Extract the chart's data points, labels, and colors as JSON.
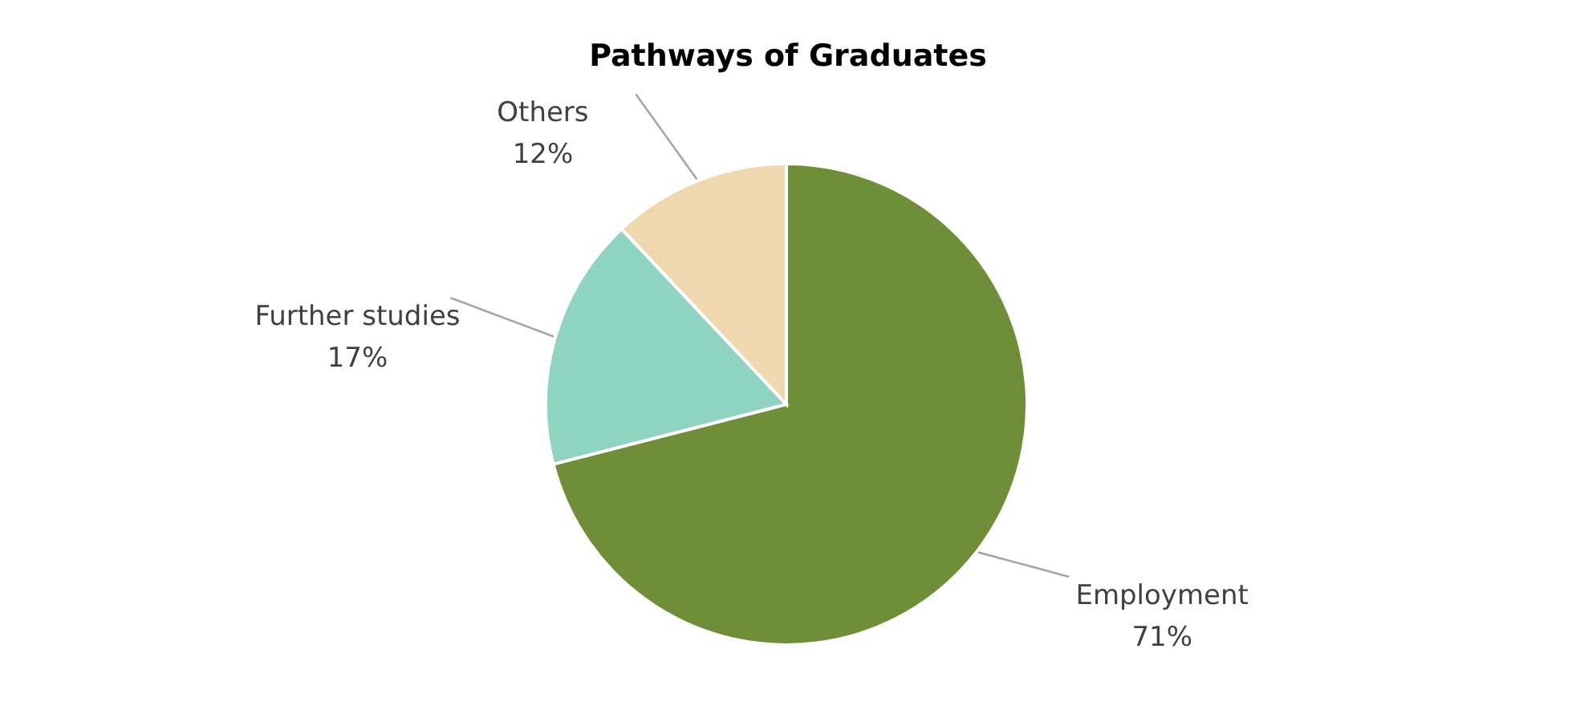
{
  "chart_data": {
    "type": "pie",
    "title": "Pathways of Graduates",
    "categories": [
      "Employment",
      "Further studies",
      "Others"
    ],
    "values": [
      71,
      17,
      12
    ],
    "colors": [
      "#6e8e37",
      "#8fd4c1",
      "#f0d8ae"
    ],
    "value_labels": [
      "71%",
      "17%",
      "12%"
    ]
  }
}
